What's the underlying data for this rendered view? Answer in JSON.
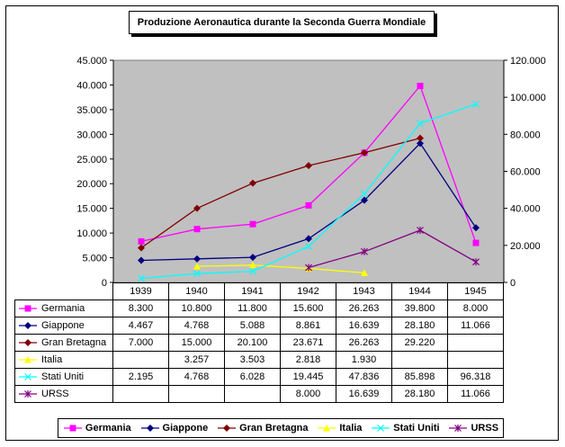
{
  "chart_data": {
    "type": "line",
    "title": "Produzione Aeronautica durante la Seconda Guerra Mondiale",
    "categories": [
      "1939",
      "1940",
      "1941",
      "1942",
      "1943",
      "1944",
      "1945"
    ],
    "y_left": {
      "ylim": [
        0,
        45000
      ],
      "ticks": [
        "0",
        "5.000",
        "10.000",
        "15.000",
        "20.000",
        "25.000",
        "30.000",
        "35.000",
        "40.000",
        "45.000"
      ]
    },
    "y_right": {
      "ylim": [
        0,
        120000
      ],
      "ticks": [
        "0",
        "20.000",
        "40.000",
        "60.000",
        "80.000",
        "100.000",
        "120.000"
      ]
    },
    "plot_background": "#c0c0c0",
    "legend_position": "bottom",
    "series": [
      {
        "name": "Germania",
        "color": "#ff00ff",
        "marker": "square",
        "axis": "left",
        "values": [
          8300,
          10800,
          11800,
          15600,
          26263,
          39800,
          8000
        ],
        "labels": [
          "8.300",
          "10.800",
          "11.800",
          "15.600",
          "26.263",
          "39.800",
          "8.000"
        ]
      },
      {
        "name": "Giappone",
        "color": "#000080",
        "marker": "diamond",
        "axis": "left",
        "values": [
          4467,
          4768,
          5088,
          8861,
          16639,
          28180,
          11066
        ],
        "labels": [
          "4.467",
          "4.768",
          "5.088",
          "8.861",
          "16.639",
          "28.180",
          "11.066"
        ]
      },
      {
        "name": "Gran Bretagna",
        "color": "#800000",
        "marker": "diamond",
        "axis": "left",
        "values": [
          7000,
          15000,
          20100,
          23671,
          26263,
          29220,
          null
        ],
        "labels": [
          "7.000",
          "15.000",
          "20.100",
          "23.671",
          "26.263",
          "29.220",
          ""
        ]
      },
      {
        "name": "Italia",
        "color": "#ffff00",
        "marker": "triangle",
        "axis": "left",
        "values": [
          null,
          3257,
          3503,
          2818,
          1930,
          null,
          null
        ],
        "labels": [
          "",
          "3.257",
          "3.503",
          "2.818",
          "1.930",
          "",
          ""
        ]
      },
      {
        "name": "Stati Uniti",
        "color": "#00ffff",
        "marker": "x",
        "axis": "right",
        "values": [
          2195,
          4768,
          6028,
          19445,
          47836,
          85898,
          96318
        ],
        "labels": [
          "2.195",
          "4.768",
          "6.028",
          "19.445",
          "47.836",
          "85.898",
          "96.318"
        ]
      },
      {
        "name": "URSS",
        "color": "#800080",
        "marker": "star",
        "axis": "right",
        "values": [
          null,
          null,
          null,
          8000,
          16639,
          28180,
          11066
        ],
        "labels": [
          "",
          "",
          "",
          "8.000",
          "16.639",
          "28.180",
          "11.066"
        ]
      }
    ]
  }
}
